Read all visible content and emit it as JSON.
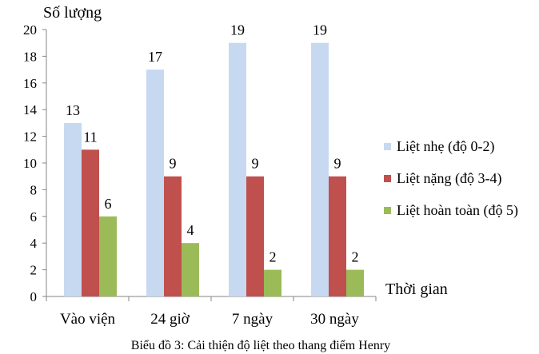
{
  "caption": "Biểu đồ 3: Cải thiện độ liệt theo thang điểm Henry",
  "chart_data": {
    "type": "bar",
    "title": "",
    "ylabel": "Số lượng",
    "xlabel": "Thời gian",
    "categories": [
      "Vào viện",
      "24 giờ",
      "7  ngày",
      "30 ngày"
    ],
    "ylim": [
      0,
      20
    ],
    "yticks": [
      0,
      2,
      4,
      6,
      8,
      10,
      12,
      14,
      16,
      18,
      20
    ],
    "grid": false,
    "legend_position": "right",
    "series": [
      {
        "name": "Liệt nhẹ (độ 0-2)",
        "values": [
          13,
          17,
          19,
          19
        ],
        "color": "#c6d9f1"
      },
      {
        "name": "Liệt nặng (độ 3-4)",
        "values": [
          11,
          9,
          9,
          9
        ],
        "color": "#c0504d"
      },
      {
        "name": "Liệt hoàn toàn (độ 5)",
        "values": [
          6,
          4,
          2,
          2
        ],
        "color": "#9bbb59"
      }
    ]
  }
}
